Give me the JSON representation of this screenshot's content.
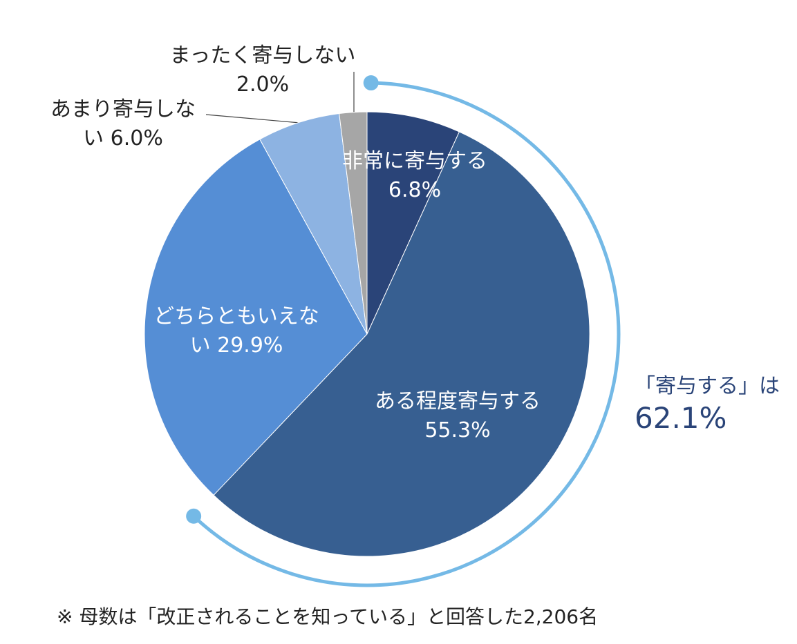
{
  "chart_data": {
    "type": "pie",
    "categories": [
      "非常に寄与する",
      "ある程度寄与する",
      "どちらともいえない",
      "あまり寄与しない",
      "まったく寄与しない"
    ],
    "values": [
      6.8,
      55.3,
      29.9,
      6.0,
      2.0
    ],
    "value_labels": [
      "6.8%",
      "55.3%",
      "29.9%",
      "6.0%",
      "2.0%"
    ],
    "colors": [
      "#2a4478",
      "#375f91",
      "#558ed5",
      "#8db3e2",
      "#a6a6a6"
    ],
    "annotation": {
      "text": "「寄与する」は",
      "value_label": "62.1%"
    },
    "footnote": "※ 母数は「改正されることを知っている」と回答した2,206名"
  }
}
